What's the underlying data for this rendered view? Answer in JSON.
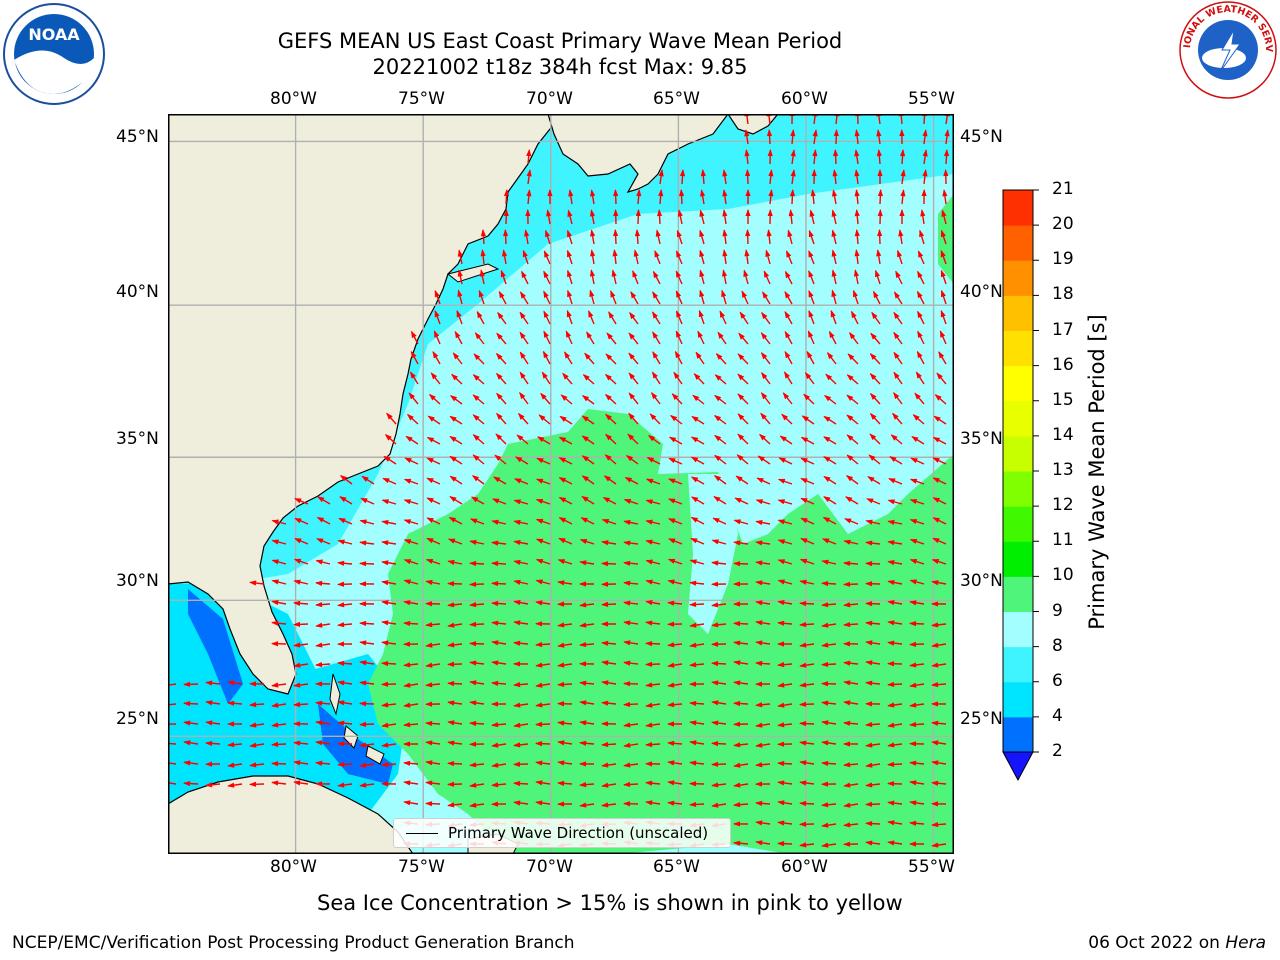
{
  "title": {
    "line1": "GEFS MEAN US East Coast Primary Wave Mean Period",
    "line2": "20221002 t18z 384h fcst   Max: 9.85"
  },
  "map": {
    "lon_labels": [
      "80°W",
      "75°W",
      "70°W",
      "65°W",
      "60°W",
      "55°W"
    ],
    "lat_labels": [
      "45°N",
      "40°N",
      "35°N",
      "30°N",
      "25°N"
    ],
    "extent": {
      "lon_min": -85,
      "lon_max": -54.2,
      "lat_min": 20.5,
      "lat_max": 45.8
    },
    "colors": {
      "land": "#efeedc",
      "grid": "#b0b0b0",
      "arrow": "#ff0000",
      "coast": "#000000"
    }
  },
  "legend": {
    "label": "Primary Wave Direction (unscaled)"
  },
  "colorbar": {
    "label": "Primary Wave Mean Period [s]",
    "ticks": [
      "2",
      "4",
      "6",
      "8",
      "9",
      "10",
      "11",
      "12",
      "13",
      "14",
      "15",
      "16",
      "17",
      "18",
      "19",
      "20",
      "21"
    ],
    "colors": [
      "#0070ff",
      "#00e5ff",
      "#40f4ff",
      "#a3ffff",
      "#4ef57a",
      "#00ee00",
      "#40f800",
      "#7fff00",
      "#c8ff00",
      "#e8ff00",
      "#ffff00",
      "#ffe000",
      "#ffc000",
      "#ff9000",
      "#ff6000",
      "#ff3000"
    ],
    "under_color": "#1414ff"
  },
  "note": "Sea Ice Concentration > 15% is shown in pink to yellow",
  "footer": {
    "left": "NCEP/EMC/Verification Post Processing Product Generation Branch",
    "right_date": "06 Oct 2022 on",
    "right_host": "Hera"
  },
  "logos": {
    "noaa_text": "NOAA",
    "nws_text": "NATIONAL WEATHER SERVICE"
  }
}
